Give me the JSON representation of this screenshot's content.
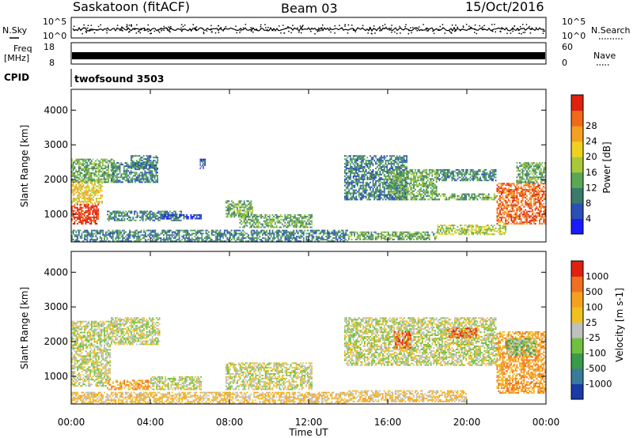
{
  "header": {
    "station": "Saskatoon (fitACF)",
    "beam": "Beam 03",
    "date": "15/Oct/2016",
    "cpid_label": "CPID",
    "cpid_value": "twofsound 3503"
  },
  "nsky_panel": {
    "left_label": "N.Sky",
    "left_ticks": [
      "10^5",
      "10^0"
    ],
    "right_ticks": [
      "10^5",
      "10^0"
    ],
    "right_label": "N.Search"
  },
  "freq_panel": {
    "left_label_line1": "Freq",
    "left_label_line2": "[MHz]",
    "left_ticks": [
      "18",
      "8"
    ],
    "right_ticks": [
      "60",
      "0"
    ],
    "right_label": "Nave"
  },
  "x_axis": {
    "label": "Time UT",
    "ticks": [
      "00:00",
      "04:00",
      "08:00",
      "12:00",
      "16:00",
      "20:00",
      "00:00"
    ]
  },
  "chart_data": [
    {
      "type": "heatmap",
      "panel": "power",
      "ylabel": "Slant Range [km]",
      "y_ticks": [
        "1000",
        "2000",
        "3000",
        "4000"
      ],
      "ylim": [
        200,
        4600
      ],
      "xlim_hours": [
        0,
        24
      ],
      "colorbar": {
        "label": "Power [dB]",
        "ticks": [
          "4",
          "8",
          "12",
          "16",
          "20",
          "24",
          "28"
        ],
        "colors": [
          "#1a1aff",
          "#2a4fb8",
          "#3a7a6a",
          "#5aa855",
          "#a8c83a",
          "#f0d020",
          "#f5a020",
          "#f06a18",
          "#e02010"
        ]
      },
      "regions": [
        {
          "t": [
            0.0,
            1.4
          ],
          "r": [
            700,
            1300
          ],
          "level": 8
        },
        {
          "t": [
            0.0,
            1.6
          ],
          "r": [
            1300,
            2000
          ],
          "level": 5
        },
        {
          "t": [
            0.0,
            2.2
          ],
          "r": [
            1900,
            2600
          ],
          "level": 3
        },
        {
          "t": [
            2.0,
            4.4
          ],
          "r": [
            1900,
            2500
          ],
          "level": 2
        },
        {
          "t": [
            3.0,
            4.4
          ],
          "r": [
            2300,
            2700
          ],
          "level": 2
        },
        {
          "t": [
            1.8,
            5.6
          ],
          "r": [
            800,
            1100
          ],
          "level": 2
        },
        {
          "t": [
            4.5,
            6.6
          ],
          "r": [
            850,
            1000
          ],
          "level": 1
        },
        {
          "t": [
            6.5,
            6.8
          ],
          "r": [
            2300,
            2600
          ],
          "level": 1
        },
        {
          "t": [
            7.8,
            9.2
          ],
          "r": [
            900,
            1400
          ],
          "level": 3
        },
        {
          "t": [
            8.5,
            12.2
          ],
          "r": [
            600,
            1000
          ],
          "level": 3
        },
        {
          "t": [
            0.0,
            14.0
          ],
          "r": [
            200,
            550
          ],
          "level": 2
        },
        {
          "t": [
            13.8,
            17.0
          ],
          "r": [
            1400,
            2700
          ],
          "level": 2
        },
        {
          "t": [
            16.0,
            18.5
          ],
          "r": [
            1600,
            2300
          ],
          "level": 3
        },
        {
          "t": [
            16.5,
            21.5
          ],
          "r": [
            1400,
            1600
          ],
          "level": 3
        },
        {
          "t": [
            18.5,
            21.5
          ],
          "r": [
            1950,
            2300
          ],
          "level": 2
        },
        {
          "t": [
            14.0,
            18.5
          ],
          "r": [
            250,
            500
          ],
          "level": 3
        },
        {
          "t": [
            18.5,
            22.0
          ],
          "r": [
            400,
            700
          ],
          "level": 4
        },
        {
          "t": [
            21.5,
            24.0
          ],
          "r": [
            700,
            1900
          ],
          "level": 7
        },
        {
          "t": [
            22.5,
            24.0
          ],
          "r": [
            1900,
            2500
          ],
          "level": 3
        }
      ]
    },
    {
      "type": "heatmap",
      "panel": "velocity",
      "ylabel": "Slant Range [km]",
      "y_ticks": [
        "1000",
        "2000",
        "3000",
        "4000"
      ],
      "ylim": [
        200,
        4600
      ],
      "xlim_hours": [
        0,
        24
      ],
      "colorbar": {
        "label": "Velocity [m s-1]",
        "ticks": [
          "1000",
          "500",
          "100",
          "25",
          "-25",
          "-100",
          "-500",
          "-1000"
        ],
        "colors": [
          "#1a3aa8",
          "#3a7a9a",
          "#3a9a4a",
          "#70c040",
          "#bfbfbf",
          "#f0c020",
          "#f5a020",
          "#f07020",
          "#e02010"
        ]
      },
      "regions": [
        {
          "t": [
            0.0,
            2.0
          ],
          "r": [
            700,
            2600
          ],
          "level": 4
        },
        {
          "t": [
            2.0,
            4.5
          ],
          "r": [
            1900,
            2700
          ],
          "level": 4
        },
        {
          "t": [
            1.8,
            4.0
          ],
          "r": [
            600,
            900
          ],
          "level": 6
        },
        {
          "t": [
            4.0,
            6.6
          ],
          "r": [
            600,
            1000
          ],
          "level": 4
        },
        {
          "t": [
            7.8,
            12.2
          ],
          "r": [
            600,
            1400
          ],
          "level": 4
        },
        {
          "t": [
            0.0,
            14.0
          ],
          "r": [
            200,
            550
          ],
          "level": 5
        },
        {
          "t": [
            13.8,
            21.5
          ],
          "r": [
            1300,
            2700
          ],
          "level": 4
        },
        {
          "t": [
            16.3,
            17.2
          ],
          "r": [
            1800,
            2300
          ],
          "level": 7
        },
        {
          "t": [
            19.0,
            20.5
          ],
          "r": [
            2100,
            2400
          ],
          "level": 7
        },
        {
          "t": [
            14.0,
            20.0
          ],
          "r": [
            250,
            600
          ],
          "level": 5
        },
        {
          "t": [
            21.5,
            24.0
          ],
          "r": [
            500,
            2300
          ],
          "level": 6
        },
        {
          "t": [
            22.0,
            23.5
          ],
          "r": [
            1600,
            2100
          ],
          "level": 3
        }
      ]
    }
  ]
}
